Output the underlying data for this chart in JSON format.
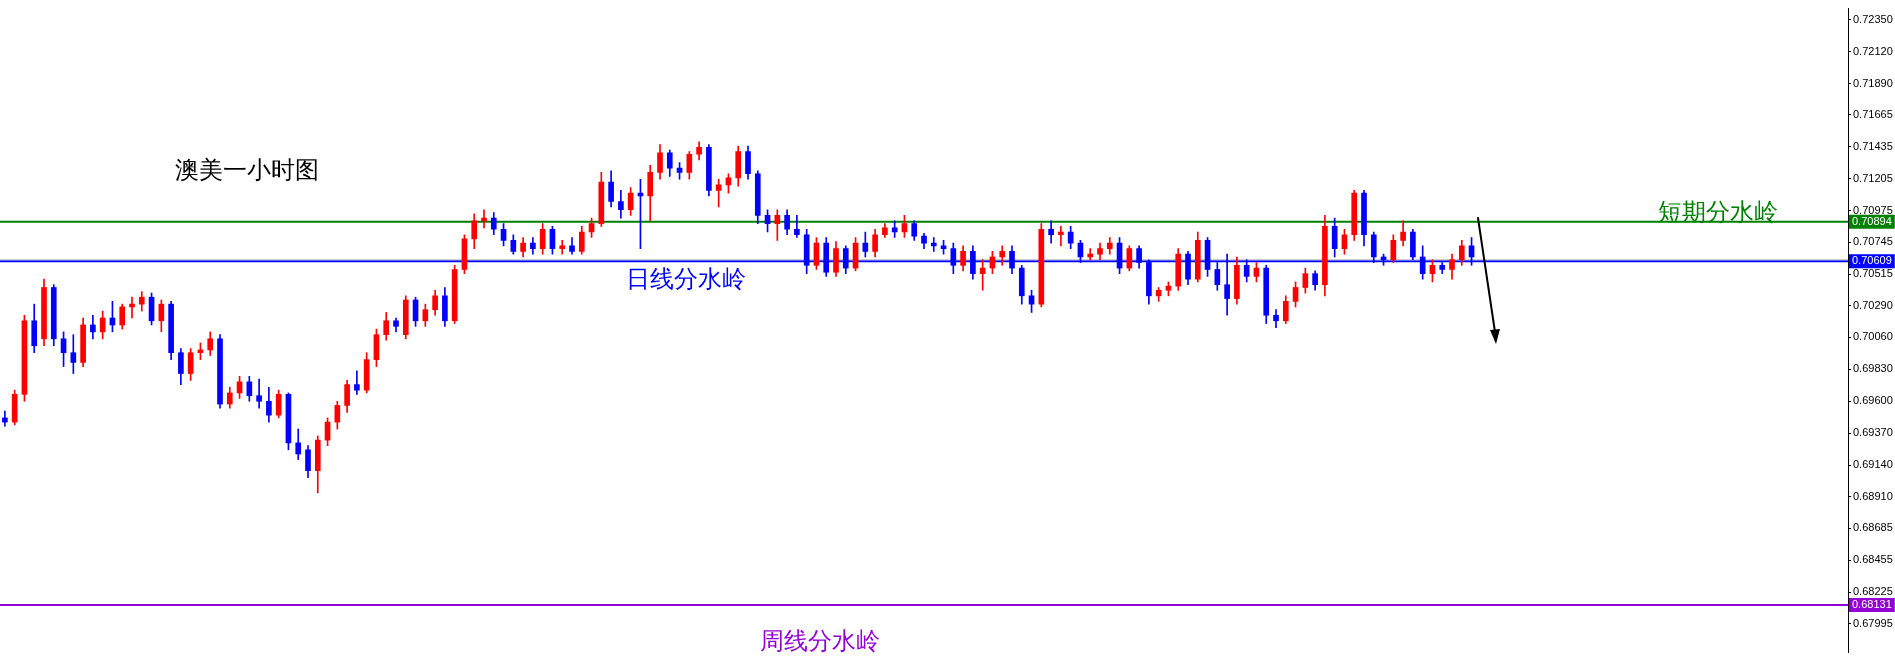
{
  "chart_data": {
    "type": "candlestick",
    "title": "澳美一小时图",
    "categories": [
      null,
      null,
      null,
      null,
      null,
      null,
      null,
      null,
      null,
      null,
      null,
      null,
      null,
      null,
      null,
      null,
      null,
      null,
      null,
      null,
      null,
      null,
      null,
      null,
      null,
      null,
      null,
      null,
      null,
      null,
      null,
      null,
      null,
      null,
      null,
      null,
      null,
      null,
      null,
      null,
      null,
      null,
      null,
      null,
      null,
      null,
      null,
      null,
      null,
      null,
      null,
      null,
      null,
      null,
      null,
      null,
      null,
      null,
      null,
      null,
      null,
      null,
      null,
      null,
      null,
      null,
      null,
      null,
      null,
      null,
      null,
      null,
      null,
      null,
      null,
      null,
      null,
      null,
      null,
      null,
      null,
      null,
      null,
      null,
      null,
      null,
      null,
      null,
      null,
      null,
      null,
      null,
      null,
      null,
      null,
      null,
      null,
      null,
      null,
      null,
      null,
      null,
      null,
      null,
      null,
      null,
      null,
      null,
      null,
      null,
      null,
      null,
      null,
      null,
      null,
      null,
      null,
      null,
      null,
      null,
      null,
      null,
      null,
      null,
      null,
      null,
      null,
      null,
      null,
      null,
      null,
      null,
      null,
      null,
      null,
      null,
      null,
      null,
      null,
      null,
      null,
      null,
      null,
      null,
      null,
      null,
      null,
      null,
      null,
      null,
      null,
      null,
      null,
      null,
      null,
      null,
      null,
      null,
      null,
      null,
      null,
      null,
      null,
      null,
      null,
      null,
      null,
      null,
      null,
      null,
      null,
      null,
      null,
      null,
      null,
      null,
      null,
      null,
      null,
      null,
      null,
      null,
      null,
      null,
      null,
      null,
      null,
      null,
      null
    ],
    "ohlc": [
      [
        0.6948,
        0.6953,
        0.6942,
        0.6945
      ],
      [
        0.6945,
        0.6968,
        0.6943,
        0.6965
      ],
      [
        0.6965,
        0.7022,
        0.696,
        0.7018
      ],
      [
        0.7018,
        0.703,
        0.6995,
        0.7
      ],
      [
        0.7005,
        0.7048,
        0.7,
        0.7042
      ],
      [
        0.7042,
        0.7044,
        0.7,
        0.7005
      ],
      [
        0.7005,
        0.701,
        0.6985,
        0.6995
      ],
      [
        0.6995,
        0.7008,
        0.698,
        0.6988
      ],
      [
        0.6988,
        0.702,
        0.6985,
        0.7015
      ],
      [
        0.7015,
        0.7022,
        0.7005,
        0.701
      ],
      [
        0.701,
        0.7025,
        0.7005,
        0.702
      ],
      [
        0.702,
        0.7032,
        0.701,
        0.7015
      ],
      [
        0.7015,
        0.703,
        0.7012,
        0.7028
      ],
      [
        0.7028,
        0.7035,
        0.702,
        0.703
      ],
      [
        0.703,
        0.7039,
        0.7025,
        0.7035
      ],
      [
        0.7035,
        0.7038,
        0.7015,
        0.7018
      ],
      [
        0.7018,
        0.7033,
        0.701,
        0.703
      ],
      [
        0.703,
        0.7032,
        0.699,
        0.6995
      ],
      [
        0.6995,
        0.6998,
        0.6972,
        0.698
      ],
      [
        0.698,
        0.6998,
        0.6975,
        0.6995
      ],
      [
        0.6995,
        0.7002,
        0.699,
        0.6997
      ],
      [
        0.6997,
        0.701,
        0.6993,
        0.7005
      ],
      [
        0.7005,
        0.7008,
        0.6955,
        0.6958
      ],
      [
        0.6958,
        0.697,
        0.6955,
        0.6966
      ],
      [
        0.6966,
        0.6978,
        0.6962,
        0.6974
      ],
      [
        0.6974,
        0.6978,
        0.696,
        0.6964
      ],
      [
        0.6964,
        0.6976,
        0.6955,
        0.696
      ],
      [
        0.696,
        0.697,
        0.6945,
        0.695
      ],
      [
        0.695,
        0.6968,
        0.6948,
        0.6965
      ],
      [
        0.6965,
        0.6966,
        0.6925,
        0.693
      ],
      [
        0.693,
        0.694,
        0.6918,
        0.6922
      ],
      [
        0.6925,
        0.6928,
        0.6905,
        0.691
      ],
      [
        0.691,
        0.6935,
        0.6894,
        0.6932
      ],
      [
        0.6932,
        0.6948,
        0.6928,
        0.6945
      ],
      [
        0.6945,
        0.696,
        0.694,
        0.6957
      ],
      [
        0.6957,
        0.6975,
        0.6952,
        0.6972
      ],
      [
        0.6972,
        0.6982,
        0.6965,
        0.6968
      ],
      [
        0.6968,
        0.6995,
        0.6966,
        0.699
      ],
      [
        0.699,
        0.7012,
        0.6985,
        0.7008
      ],
      [
        0.7008,
        0.7024,
        0.7004,
        0.7018
      ],
      [
        0.7018,
        0.702,
        0.701,
        0.7014
      ],
      [
        0.7008,
        0.7036,
        0.7005,
        0.7033
      ],
      [
        0.7033,
        0.7035,
        0.7014,
        0.7018
      ],
      [
        0.7018,
        0.703,
        0.7014,
        0.7026
      ],
      [
        0.7026,
        0.704,
        0.7022,
        0.7036
      ],
      [
        0.7036,
        0.7042,
        0.7014,
        0.7018
      ],
      [
        0.7018,
        0.7058,
        0.7016,
        0.7055
      ],
      [
        0.7055,
        0.708,
        0.7052,
        0.7077
      ],
      [
        0.7077,
        0.7095,
        0.707,
        0.709
      ],
      [
        0.709,
        0.7098,
        0.7085,
        0.7092
      ],
      [
        0.7092,
        0.7096,
        0.708,
        0.7084
      ],
      [
        0.7084,
        0.7088,
        0.7072,
        0.7076
      ],
      [
        0.7076,
        0.708,
        0.7066,
        0.7068
      ],
      [
        0.7068,
        0.7078,
        0.7064,
        0.7074
      ],
      [
        0.7074,
        0.7078,
        0.7066,
        0.707
      ],
      [
        0.707,
        0.7088,
        0.7066,
        0.7084
      ],
      [
        0.7084,
        0.7086,
        0.7066,
        0.707
      ],
      [
        0.707,
        0.7076,
        0.7066,
        0.7072
      ],
      [
        0.7072,
        0.7078,
        0.7066,
        0.7068
      ],
      [
        0.7068,
        0.7086,
        0.7066,
        0.7082
      ],
      [
        0.7082,
        0.7092,
        0.7078,
        0.7088
      ],
      [
        0.7088,
        0.7125,
        0.7086,
        0.7118
      ],
      [
        0.7118,
        0.7126,
        0.71,
        0.7104
      ],
      [
        0.7104,
        0.7112,
        0.7092,
        0.7098
      ],
      [
        0.7098,
        0.7114,
        0.7094,
        0.711
      ],
      [
        0.711,
        0.712,
        0.707,
        0.7108
      ],
      [
        0.7108,
        0.713,
        0.709,
        0.7125
      ],
      [
        0.7125,
        0.7145,
        0.712,
        0.7139
      ],
      [
        0.7139,
        0.7141,
        0.7122,
        0.7128
      ],
      [
        0.7128,
        0.7132,
        0.712,
        0.7125
      ],
      [
        0.7125,
        0.714,
        0.712,
        0.7138
      ],
      [
        0.7138,
        0.7147,
        0.7134,
        0.7143
      ],
      [
        0.7143,
        0.7145,
        0.7108,
        0.7112
      ],
      [
        0.7112,
        0.712,
        0.71,
        0.7116
      ],
      [
        0.7116,
        0.7124,
        0.711,
        0.7121
      ],
      [
        0.7121,
        0.7144,
        0.7115,
        0.714
      ],
      [
        0.714,
        0.7144,
        0.712,
        0.7124
      ],
      [
        0.7124,
        0.7126,
        0.7088,
        0.7094
      ],
      [
        0.7094,
        0.7098,
        0.7082,
        0.7088
      ],
      [
        0.7088,
        0.7098,
        0.7076,
        0.7094
      ],
      [
        0.7094,
        0.7098,
        0.708,
        0.7084
      ],
      [
        0.7084,
        0.7094,
        0.7078,
        0.708
      ],
      [
        0.708,
        0.7084,
        0.7052,
        0.7058
      ],
      [
        0.7058,
        0.7078,
        0.7055,
        0.7074
      ],
      [
        0.7074,
        0.7078,
        0.705,
        0.7053
      ],
      [
        0.7053,
        0.7075,
        0.705,
        0.707
      ],
      [
        0.707,
        0.7072,
        0.7052,
        0.7056
      ],
      [
        0.7056,
        0.7078,
        0.7054,
        0.7074
      ],
      [
        0.7074,
        0.7082,
        0.7064,
        0.7068
      ],
      [
        0.7068,
        0.7084,
        0.7064,
        0.708
      ],
      [
        0.708,
        0.7088,
        0.7078,
        0.7085
      ],
      [
        0.7085,
        0.709,
        0.7078,
        0.7082
      ],
      [
        0.7082,
        0.7094,
        0.7078,
        0.7088
      ],
      [
        0.7088,
        0.709,
        0.7076,
        0.7079
      ],
      [
        0.7079,
        0.7081,
        0.707,
        0.7074
      ],
      [
        0.7074,
        0.7078,
        0.7068,
        0.7072
      ],
      [
        0.7072,
        0.7076,
        0.7066,
        0.707
      ],
      [
        0.707,
        0.7074,
        0.7052,
        0.7058
      ],
      [
        0.7058,
        0.7072,
        0.7054,
        0.7068
      ],
      [
        0.7068,
        0.7072,
        0.7048,
        0.7052
      ],
      [
        0.7052,
        0.7062,
        0.704,
        0.7056
      ],
      [
        0.7056,
        0.7068,
        0.7052,
        0.7064
      ],
      [
        0.7064,
        0.7072,
        0.7058,
        0.7068
      ],
      [
        0.7068,
        0.7072,
        0.7052,
        0.7056
      ],
      [
        0.7056,
        0.7058,
        0.703,
        0.7036
      ],
      [
        0.7036,
        0.704,
        0.7024,
        0.703
      ],
      [
        0.703,
        0.7088,
        0.7028,
        0.7084
      ],
      [
        0.7084,
        0.709,
        0.7074,
        0.708
      ],
      [
        0.708,
        0.7086,
        0.7072,
        0.7082
      ],
      [
        0.7082,
        0.7086,
        0.707,
        0.7074
      ],
      [
        0.7074,
        0.7076,
        0.706,
        0.7064
      ],
      [
        0.7064,
        0.707,
        0.7062,
        0.7066
      ],
      [
        0.7066,
        0.7074,
        0.7062,
        0.707
      ],
      [
        0.707,
        0.7078,
        0.7066,
        0.7074
      ],
      [
        0.7074,
        0.7078,
        0.7052,
        0.7056
      ],
      [
        0.7056,
        0.7072,
        0.7054,
        0.707
      ],
      [
        0.707,
        0.7072,
        0.7056,
        0.706
      ],
      [
        0.706,
        0.7062,
        0.703,
        0.7036
      ],
      [
        0.7036,
        0.7042,
        0.7032,
        0.704
      ],
      [
        0.704,
        0.7046,
        0.7036,
        0.7043
      ],
      [
        0.7043,
        0.707,
        0.704,
        0.7066
      ],
      [
        0.7066,
        0.7068,
        0.7044,
        0.7048
      ],
      [
        0.7048,
        0.7082,
        0.7046,
        0.7076
      ],
      [
        0.7076,
        0.7078,
        0.705,
        0.7055
      ],
      [
        0.7055,
        0.706,
        0.704,
        0.7044
      ],
      [
        0.7044,
        0.7066,
        0.7022,
        0.7034
      ],
      [
        0.7034,
        0.7064,
        0.703,
        0.7058
      ],
      [
        0.7058,
        0.7062,
        0.7046,
        0.705
      ],
      [
        0.705,
        0.706,
        0.7046,
        0.7056
      ],
      [
        0.7056,
        0.7058,
        0.7016,
        0.7022
      ],
      [
        0.7022,
        0.7026,
        0.7013,
        0.7018
      ],
      [
        0.7018,
        0.7036,
        0.7016,
        0.7032
      ],
      [
        0.7032,
        0.7046,
        0.7028,
        0.7042
      ],
      [
        0.7042,
        0.7056,
        0.7038,
        0.7052
      ],
      [
        0.7052,
        0.7054,
        0.704,
        0.7044
      ],
      [
        0.7044,
        0.7094,
        0.7036,
        0.7086
      ],
      [
        0.7086,
        0.7092,
        0.7064,
        0.707
      ],
      [
        0.707,
        0.7084,
        0.7066,
        0.708
      ],
      [
        0.708,
        0.7112,
        0.7076,
        0.711
      ],
      [
        0.711,
        0.7112,
        0.7072,
        0.708
      ],
      [
        0.708,
        0.7082,
        0.706,
        0.7064
      ],
      [
        0.7064,
        0.7066,
        0.7058,
        0.7062
      ],
      [
        0.7062,
        0.708,
        0.706,
        0.7076
      ],
      [
        0.7076,
        0.709,
        0.7072,
        0.7082
      ],
      [
        0.7082,
        0.7084,
        0.7062,
        0.7064
      ],
      [
        0.7064,
        0.7072,
        0.7048,
        0.7052
      ],
      [
        0.7052,
        0.7062,
        0.7046,
        0.7058
      ],
      [
        0.7058,
        0.706,
        0.7052,
        0.7055
      ],
      [
        0.7055,
        0.7066,
        0.7048,
        0.7062
      ],
      [
        0.7062,
        0.7076,
        0.7058,
        0.7072
      ],
      [
        0.7072,
        0.7078,
        0.7058,
        0.7064
      ],
      null,
      null,
      null,
      null,
      null,
      null,
      null,
      null,
      null,
      null,
      null,
      null,
      null,
      null,
      null,
      null,
      null,
      null,
      null,
      null,
      null,
      null,
      null,
      null,
      null,
      null,
      null,
      null,
      null,
      null,
      null,
      null,
      null,
      null,
      null,
      null,
      null,
      null
    ],
    "colors": [
      "#0000ff",
      "#ff0000",
      "#ff0000",
      "#0000ff",
      "#ff0000",
      "#0000ff",
      "#0000ff",
      "#0000ff",
      "#ff0000",
      "#0000ff",
      "#ff0000",
      "#0000ff",
      "#ff0000",
      "#ff0000",
      "#ff0000",
      "#0000ff",
      "#ff0000",
      "#0000ff",
      "#0000ff",
      "#ff0000",
      "#ff0000",
      "#ff0000",
      "#0000ff",
      "#ff0000",
      "#ff0000",
      "#0000ff",
      "#0000ff",
      "#0000ff",
      "#ff0000",
      "#0000ff",
      "#0000ff",
      "#0000ff",
      "#ff0000",
      "#ff0000",
      "#ff0000",
      "#ff0000",
      "#0000ff",
      "#ff0000",
      "#ff0000",
      "#ff0000",
      "#0000ff",
      "#ff0000",
      "#0000ff",
      "#ff0000",
      "#ff0000",
      "#0000ff",
      "#ff0000",
      "#ff0000",
      "#ff0000",
      "#ff0000",
      "#0000ff",
      "#0000ff",
      "#0000ff",
      "#ff0000",
      "#0000ff",
      "#ff0000",
      "#0000ff",
      "#ff0000",
      "#0000ff",
      "#ff0000",
      "#ff0000",
      "#ff0000",
      "#0000ff",
      "#0000ff",
      "#ff0000",
      "#0000ff",
      "#ff0000",
      "#ff0000",
      "#0000ff",
      "#0000ff",
      "#ff0000",
      "#ff0000",
      "#0000ff",
      "#ff0000",
      "#ff0000",
      "#ff0000",
      "#0000ff",
      "#0000ff",
      "#0000ff",
      "#ff0000",
      "#0000ff",
      "#0000ff",
      "#0000ff",
      "#ff0000",
      "#0000ff",
      "#ff0000",
      "#0000ff",
      "#ff0000",
      "#0000ff",
      "#ff0000",
      "#ff0000",
      "#0000ff",
      "#ff0000",
      "#0000ff",
      "#0000ff",
      "#0000ff",
      "#0000ff",
      "#0000ff",
      "#ff0000",
      "#0000ff",
      "#ff0000",
      "#ff0000",
      "#ff0000",
      "#0000ff",
      "#0000ff",
      "#0000ff",
      "#ff0000",
      "#0000ff",
      "#ff0000",
      "#0000ff",
      "#0000ff",
      "#ff0000",
      "#ff0000",
      "#ff0000",
      "#0000ff",
      "#ff0000",
      "#0000ff",
      "#0000ff",
      "#ff0000",
      "#ff0000",
      "#ff0000",
      "#0000ff",
      "#ff0000",
      "#0000ff",
      "#0000ff",
      "#0000ff",
      "#ff0000",
      "#0000ff",
      "#ff0000",
      "#0000ff",
      "#0000ff",
      "#ff0000",
      "#ff0000",
      "#ff0000",
      "#0000ff",
      "#ff0000",
      "#0000ff",
      "#ff0000",
      "#ff0000",
      "#0000ff",
      "#0000ff",
      "#0000ff",
      "#ff0000",
      "#ff0000",
      "#0000ff",
      "#0000ff",
      "#ff0000",
      "#0000ff",
      "#ff0000",
      "#ff0000",
      "#0000ff",
      null,
      null,
      null,
      null,
      null,
      null,
      null,
      null,
      null,
      null,
      null,
      null,
      null,
      null,
      null,
      null,
      null,
      null,
      null,
      null,
      null,
      null,
      null,
      null,
      null,
      null,
      null,
      null,
      null,
      null,
      null,
      null,
      null,
      null,
      null,
      null,
      null,
      null
    ],
    "ylim": [
      0.6779,
      0.7243
    ],
    "yticks": [
      {
        "value": 0.7235,
        "label": "0.72350"
      },
      {
        "value": 0.7212,
        "label": "0.72120"
      },
      {
        "value": 0.7189,
        "label": "0.71890"
      },
      {
        "value": 0.71665,
        "label": "0.71665"
      },
      {
        "value": 0.71435,
        "label": "0.71435"
      },
      {
        "value": 0.71205,
        "label": "0.71205"
      },
      {
        "value": 0.70975,
        "label": "0.70975"
      },
      {
        "value": 0.70745,
        "label": "0.70745"
      },
      {
        "value": 0.70515,
        "label": "0.70515"
      },
      {
        "value": 0.7029,
        "label": "0.70290"
      },
      {
        "value": 0.7006,
        "label": "0.70060"
      },
      {
        "value": 0.6983,
        "label": "0.69830"
      },
      {
        "value": 0.696,
        "label": "0.69600"
      },
      {
        "value": 0.6937,
        "label": "0.69370"
      },
      {
        "value": 0.6914,
        "label": "0.69140"
      },
      {
        "value": 0.6891,
        "label": "0.68910"
      },
      {
        "value": 0.68685,
        "label": "0.68685"
      },
      {
        "value": 0.68455,
        "label": "0.68455"
      },
      {
        "value": 0.68225,
        "label": "0.68225"
      },
      {
        "value": 0.67995,
        "label": "0.67995"
      }
    ],
    "ref_lines": [
      {
        "axis": "y",
        "value": 0.70894,
        "label": "短期分水岭",
        "color": "#008000"
      },
      {
        "axis": "y",
        "value": 0.70609,
        "label": "日线分水岭",
        "color": "#0000ff"
      },
      {
        "axis": "y",
        "value": 0.68131,
        "label": "周线分水岭",
        "color": "#9400d3"
      },
      {
        "axis": "y",
        "value": 0.7062,
        "color": "#c0c0c0"
      }
    ],
    "annotations": [
      "0.70894",
      "0.70609",
      "0.68131"
    ],
    "tick_labels": "y",
    "grid": false,
    "legend": false
  }
}
